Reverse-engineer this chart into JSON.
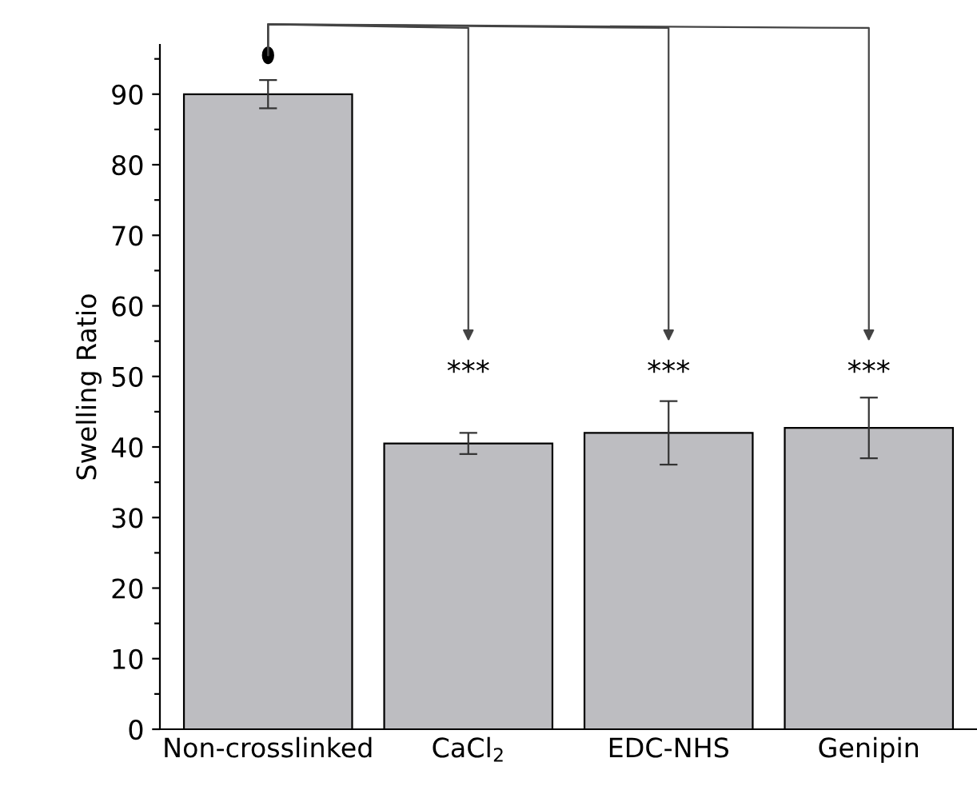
{
  "chart_data": {
    "type": "bar",
    "ylabel": "Swelling Ratio",
    "categories": [
      "Non-crosslinked",
      "CaCl$_{2}$",
      "EDC-NHS",
      "Genipin"
    ],
    "values": [
      90,
      40.5,
      42,
      42.7
    ],
    "errors": [
      2,
      1.5,
      4.5,
      4.3
    ],
    "color": "#bdbdc1",
    "ylim": [
      0,
      97
    ],
    "yticks": [
      0,
      {
        "value": 5,
        "label": null
      },
      10,
      {
        "value": 15,
        "label": null
      },
      20,
      {
        "value": 25,
        "label": null
      },
      30,
      {
        "value": 35,
        "label": null
      },
      40,
      {
        "value": 45,
        "label": null
      },
      50,
      {
        "value": 55,
        "label": null
      },
      60,
      {
        "value": 65,
        "label": null
      },
      70,
      {
        "value": 75,
        "label": null
      },
      80,
      {
        "value": 85,
        "label": null
      },
      90,
      {
        "value": 95,
        "label": null
      }
    ],
    "annotations": [
      "***",
      "***",
      "***"
    ],
    "grid": false,
    "legend": false
  }
}
